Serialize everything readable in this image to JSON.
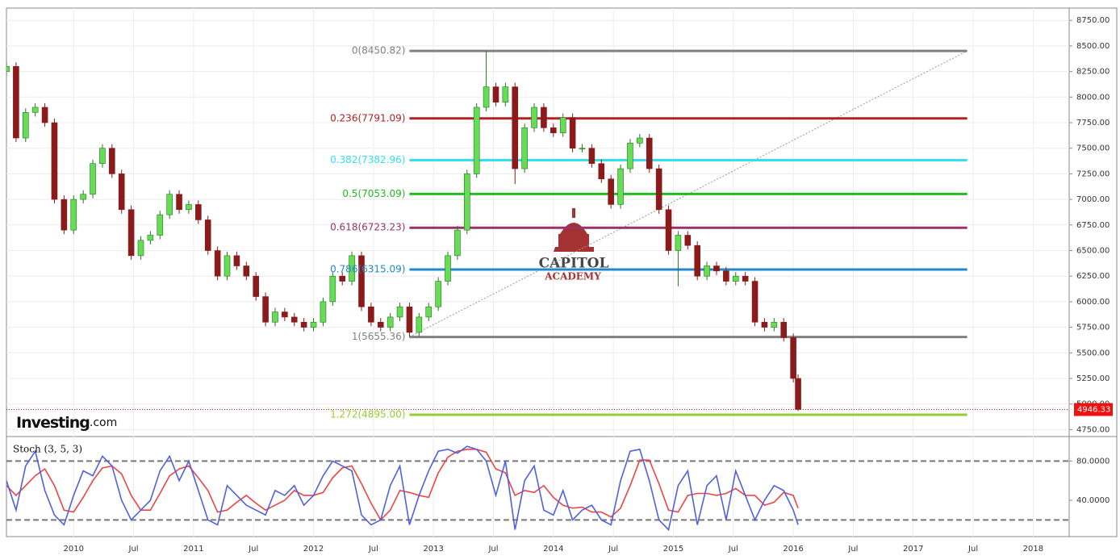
{
  "chart_data": [
    {
      "type": "candlestick",
      "x": [
        2009.44,
        2009.52,
        2009.6,
        2009.68,
        2009.76,
        2009.84,
        2009.92,
        2010.0,
        2010.08,
        2010.16,
        2010.24,
        2010.32,
        2010.4,
        2010.48,
        2010.56,
        2010.64,
        2010.72,
        2010.8,
        2010.88,
        2010.96,
        2011.04,
        2011.12,
        2011.2,
        2011.28,
        2011.36,
        2011.44,
        2011.52,
        2011.6,
        2011.68,
        2011.76,
        2011.84,
        2011.92,
        2012.0,
        2012.08,
        2012.16,
        2012.24,
        2012.32,
        2012.4,
        2012.48,
        2012.56,
        2012.64,
        2012.72,
        2012.8,
        2012.88,
        2012.96,
        2013.04,
        2013.12,
        2013.2,
        2013.28,
        2013.36,
        2013.44,
        2013.52,
        2013.6,
        2013.68,
        2013.76,
        2013.84,
        2013.92,
        2014.0,
        2014.08,
        2014.16,
        2014.24,
        2014.32,
        2014.4,
        2014.48,
        2014.56,
        2014.64,
        2014.72,
        2014.8,
        2014.88,
        2014.96,
        2015.04,
        2015.12,
        2015.2,
        2015.28,
        2015.36,
        2015.44,
        2015.52,
        2015.6,
        2015.68,
        2015.76,
        2015.84,
        2015.92,
        2016.0,
        2016.04
      ],
      "open": [
        8250,
        8300,
        7600,
        7850,
        7900,
        7750,
        7000,
        6700,
        7000,
        7050,
        7350,
        7500,
        7250,
        6900,
        6450,
        6600,
        6650,
        6850,
        7050,
        6900,
        6950,
        6800,
        6500,
        6250,
        6450,
        6350,
        6250,
        6050,
        5800,
        5900,
        5850,
        5800,
        5750,
        5800,
        6000,
        6250,
        6200,
        6450,
        5950,
        5800,
        5750,
        5850,
        5950,
        5700,
        5850,
        5950,
        6200,
        6450,
        6700,
        7250,
        7900,
        8100,
        7950,
        8100,
        7300,
        7700,
        7900,
        7700,
        7650,
        7800,
        7500,
        7500,
        7350,
        7200,
        6950,
        7300,
        7550,
        7600,
        7300,
        6900,
        6500,
        6650,
        6550,
        6250,
        6350,
        6300,
        6200,
        6250,
        6200,
        5800,
        5750,
        5800,
        5650,
        5250
      ],
      "high": [
        8340,
        8340,
        7890,
        7940,
        7940,
        7790,
        7040,
        7040,
        7090,
        7390,
        7540,
        7540,
        7290,
        6940,
        6640,
        6690,
        6890,
        7090,
        7090,
        6990,
        6990,
        6840,
        6540,
        6490,
        6490,
        6390,
        6290,
        6090,
        5940,
        5940,
        5890,
        5840,
        5840,
        6040,
        6290,
        6290,
        6490,
        6490,
        5990,
        5840,
        5890,
        5990,
        5990,
        5890,
        5990,
        6240,
        6490,
        6740,
        7290,
        7940,
        8450.82,
        8140,
        8140,
        8140,
        7740,
        7940,
        7940,
        7740,
        7840,
        7840,
        7540,
        7540,
        7390,
        7240,
        7340,
        7590,
        7640,
        7640,
        7340,
        6940,
        6690,
        6690,
        6590,
        6390,
        6390,
        6340,
        6290,
        6290,
        6240,
        5840,
        5840,
        5840,
        5690,
        5290
      ],
      "low": [
        8210,
        7560,
        7560,
        7810,
        7710,
        6960,
        6660,
        6660,
        6960,
        7010,
        7310,
        7210,
        6860,
        6410,
        6410,
        6560,
        6610,
        6810,
        6860,
        6860,
        6760,
        6460,
        6210,
        6210,
        6310,
        6210,
        6010,
        5760,
        5760,
        5810,
        5760,
        5710,
        5710,
        5760,
        5960,
        6160,
        6160,
        5910,
        5760,
        5710,
        5710,
        5810,
        5655.36,
        5660,
        5810,
        5910,
        6160,
        6410,
        6660,
        7210,
        7860,
        7910,
        7910,
        7150,
        7260,
        7660,
        7660,
        7610,
        7610,
        7460,
        7460,
        7310,
        7160,
        6910,
        6910,
        7260,
        7510,
        7260,
        6860,
        6460,
        6150,
        6510,
        6210,
        6210,
        6260,
        6160,
        6160,
        6160,
        5760,
        5710,
        5710,
        5610,
        5210,
        4930
      ],
      "close": [
        8300,
        7600,
        7850,
        7900,
        7750,
        7000,
        6700,
        7000,
        7050,
        7350,
        7500,
        7250,
        6900,
        6450,
        6600,
        6650,
        6850,
        7050,
        6900,
        6950,
        6800,
        6500,
        6250,
        6450,
        6350,
        6250,
        6050,
        5800,
        5900,
        5850,
        5800,
        5750,
        5800,
        6000,
        6250,
        6200,
        6450,
        5950,
        5800,
        5750,
        5850,
        5950,
        5700,
        5850,
        5950,
        6200,
        6450,
        6700,
        7250,
        7900,
        8100,
        7950,
        8100,
        7300,
        7700,
        7900,
        7700,
        7650,
        7800,
        7500,
        7500,
        7350,
        7200,
        6950,
        7300,
        7550,
        7600,
        7300,
        6900,
        6500,
        6650,
        6550,
        6250,
        6350,
        6300,
        6200,
        6250,
        6200,
        5800,
        5750,
        5800,
        5650,
        5250,
        4946.33
      ],
      "up_color": "#66dd55",
      "down_color": "#8b1a1a",
      "xlim": [
        2009.44,
        2018.3
      ],
      "xticks": [
        {
          "value": 2010,
          "label": "2010"
        },
        {
          "value": 2010.5,
          "label": "Jul"
        },
        {
          "value": 2011,
          "label": "2011"
        },
        {
          "value": 2011.5,
          "label": "Jul"
        },
        {
          "value": 2012,
          "label": "2012"
        },
        {
          "value": 2012.5,
          "label": "Jul"
        },
        {
          "value": 2013,
          "label": "2013"
        },
        {
          "value": 2013.5,
          "label": "Jul"
        },
        {
          "value": 2014,
          "label": "2014"
        },
        {
          "value": 2014.5,
          "label": "Jul"
        },
        {
          "value": 2015,
          "label": "2015"
        },
        {
          "value": 2015.5,
          "label": "Jul"
        },
        {
          "value": 2016,
          "label": "2016"
        },
        {
          "value": 2016.5,
          "label": "Jul"
        },
        {
          "value": 2017,
          "label": "2017"
        },
        {
          "value": 2017.5,
          "label": "Jul"
        },
        {
          "value": 2018,
          "label": "2018"
        }
      ],
      "ylim": [
        4690,
        8870
      ],
      "yticks": [
        {
          "value": 4750,
          "label": "4750.00"
        },
        {
          "value": 5000,
          "label": "5000.00"
        },
        {
          "value": 5250,
          "label": "5250.00"
        },
        {
          "value": 5500,
          "label": "5500.00"
        },
        {
          "value": 5750,
          "label": "5750.00"
        },
        {
          "value": 6000,
          "label": "6000.00"
        },
        {
          "value": 6250,
          "label": "6250.00"
        },
        {
          "value": 6500,
          "label": "6500.00"
        },
        {
          "value": 6750,
          "label": "6750.00"
        },
        {
          "value": 7000,
          "label": "7000.00"
        },
        {
          "value": 7250,
          "label": "7250.00"
        },
        {
          "value": 7500,
          "label": "7500.00"
        },
        {
          "value": 7750,
          "label": "7750.00"
        },
        {
          "value": 8000,
          "label": "8000.00"
        },
        {
          "value": 8250,
          "label": "8250.00"
        },
        {
          "value": 8500,
          "label": "8500.00"
        },
        {
          "value": 8750,
          "label": "8750.00"
        }
      ],
      "grid": true,
      "fib_x": [
        2012.8,
        2017.45
      ],
      "fib_levels": [
        {
          "value": 8450.82,
          "label": "0(8450.82)",
          "color": "#808080"
        },
        {
          "value": 7791.09,
          "label": "0.236(7791.09)",
          "color": "#b22222"
        },
        {
          "value": 7382.96,
          "label": "0.382(7382.96)",
          "color": "#33e0f0"
        },
        {
          "value": 7053.09,
          "label": "0.5(7053.09)",
          "color": "#22bb22"
        },
        {
          "value": 6723.23,
          "label": "0.618(6723.23)",
          "color": "#993366"
        },
        {
          "value": 6315.09,
          "label": "0.786(6315.09)",
          "color": "#2288cc"
        },
        {
          "value": 5655.36,
          "label": "1(5655.36)",
          "color": "#808080"
        },
        {
          "value": 4895.0,
          "label": "1.272(4895.00)",
          "color": "#99cc33"
        }
      ],
      "last_price": 4946.33,
      "last_price_color": "#ee1111",
      "logo": "Investing",
      "logo_suffix": ".com",
      "watermark_top": "CAPITOL",
      "watermark_bottom": "ACADEMY"
    },
    {
      "type": "stochastic",
      "title": "Stoch (3, 5, 3)",
      "x": [
        2009.44,
        2009.52,
        2009.6,
        2009.68,
        2009.76,
        2009.84,
        2009.92,
        2010.0,
        2010.08,
        2010.16,
        2010.24,
        2010.32,
        2010.4,
        2010.48,
        2010.56,
        2010.64,
        2010.72,
        2010.8,
        2010.88,
        2010.96,
        2011.04,
        2011.12,
        2011.2,
        2011.28,
        2011.36,
        2011.44,
        2011.52,
        2011.6,
        2011.68,
        2011.76,
        2011.84,
        2011.92,
        2012.0,
        2012.08,
        2012.16,
        2012.24,
        2012.32,
        2012.4,
        2012.48,
        2012.56,
        2012.64,
        2012.72,
        2012.8,
        2012.88,
        2012.96,
        2013.04,
        2013.12,
        2013.2,
        2013.28,
        2013.36,
        2013.44,
        2013.52,
        2013.6,
        2013.68,
        2013.76,
        2013.84,
        2013.92,
        2014.0,
        2014.08,
        2014.16,
        2014.24,
        2014.32,
        2014.4,
        2014.48,
        2014.56,
        2014.64,
        2014.72,
        2014.8,
        2014.88,
        2014.96,
        2015.04,
        2015.12,
        2015.2,
        2015.28,
        2015.36,
        2015.44,
        2015.52,
        2015.6,
        2015.68,
        2015.76,
        2015.84,
        2015.92,
        2016.0,
        2016.04
      ],
      "series": [
        {
          "color": "#5060e0",
          "values": [
            60,
            30,
            75,
            90,
            50,
            25,
            15,
            45,
            70,
            65,
            85,
            75,
            40,
            20,
            30,
            40,
            70,
            85,
            60,
            80,
            50,
            20,
            15,
            55,
            45,
            35,
            30,
            25,
            50,
            45,
            55,
            35,
            45,
            65,
            80,
            75,
            70,
            25,
            15,
            20,
            55,
            75,
            15,
            45,
            70,
            90,
            92,
            88,
            95,
            92,
            80,
            45,
            80,
            10,
            60,
            75,
            30,
            25,
            50,
            20,
            30,
            35,
            20,
            15,
            60,
            90,
            92,
            60,
            20,
            10,
            55,
            70,
            15,
            55,
            65,
            20,
            70,
            45,
            20,
            40,
            55,
            50,
            30,
            15
          ]
        },
        {
          "color": "#ee4444",
          "values": [
            55,
            45,
            55,
            65,
            72,
            55,
            30,
            28,
            43,
            60,
            73,
            75,
            67,
            45,
            30,
            30,
            47,
            65,
            72,
            75,
            63,
            50,
            28,
            30,
            38,
            45,
            37,
            30,
            35,
            40,
            50,
            45,
            45,
            48,
            63,
            73,
            75,
            57,
            37,
            20,
            30,
            50,
            48,
            45,
            43,
            68,
            84,
            90,
            92,
            92,
            89,
            72,
            68,
            45,
            50,
            48,
            55,
            43,
            35,
            32,
            33,
            28,
            28,
            23,
            32,
            55,
            81,
            81,
            57,
            30,
            28,
            45,
            47,
            47,
            45,
            47,
            52,
            45,
            45,
            35,
            38,
            48,
            45,
            32
          ]
        }
      ],
      "xlim": [
        2009.44,
        2018.3
      ],
      "ylim": [
        3,
        105
      ],
      "yticks": [
        {
          "value": 80,
          "label": "80.0000"
        },
        {
          "value": 40,
          "label": "40.0000"
        }
      ],
      "levels": [
        80,
        20
      ]
    }
  ]
}
